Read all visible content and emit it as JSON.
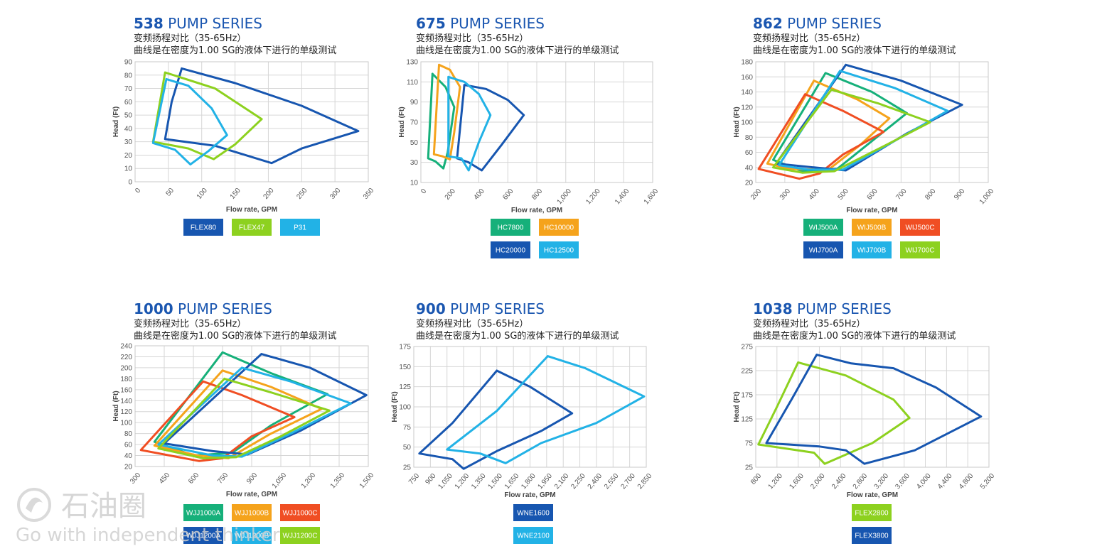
{
  "subtitle_line1": "变频扬程对比（35-65Hz）",
  "subtitle_line2": "曲线是在密度为1.00 SG的液体下进行的单级测试",
  "watermark": {
    "logo_text": "石油圈",
    "tagline": "Go with independent thinker"
  },
  "chart_data": [
    {
      "type": "line",
      "title_num": "538",
      "title_rest": " PUMP SERIES",
      "xlabel": "Flow rate, GPM",
      "ylabel": "Head (Ft)",
      "xlim": [
        0,
        350
      ],
      "ylim": [
        0,
        90
      ],
      "xticks": [
        0,
        50,
        100,
        150,
        200,
        250,
        300,
        350
      ],
      "yticks": [
        0,
        10,
        20,
        30,
        40,
        50,
        60,
        70,
        80,
        90
      ],
      "series": [
        {
          "name": "FLEX80",
          "color": "#1756b0",
          "points": [
            [
              70,
              85
            ],
            [
              150,
              74
            ],
            [
              250,
              57
            ],
            [
              335,
              38
            ],
            [
              250,
              25
            ],
            [
              205,
              14
            ],
            [
              120,
              27
            ],
            [
              45,
              32
            ],
            [
              55,
              60
            ],
            [
              70,
              85
            ]
          ]
        },
        {
          "name": "FLEX47",
          "color": "#8dd11f",
          "points": [
            [
              45,
              82
            ],
            [
              120,
              70
            ],
            [
              190,
              47
            ],
            [
              150,
              28
            ],
            [
              118,
              17
            ],
            [
              80,
              25
            ],
            [
              27,
              30
            ],
            [
              45,
              82
            ]
          ]
        },
        {
          "name": "P31",
          "color": "#22b2e6",
          "points": [
            [
              47,
              77
            ],
            [
              80,
              72
            ],
            [
              115,
              55
            ],
            [
              138,
              35
            ],
            [
              110,
              23
            ],
            [
              83,
              13
            ],
            [
              60,
              24
            ],
            [
              27,
              29
            ],
            [
              47,
              77
            ]
          ]
        }
      ]
    },
    {
      "type": "line",
      "title_num": "675",
      "title_rest": " PUMP SERIES",
      "xlabel": "Flow rate, GPM",
      "ylabel": "Head (Ft)",
      "xlim": [
        0,
        1600
      ],
      "ylim": [
        10,
        130
      ],
      "xticks": [
        0,
        200,
        400,
        600,
        800,
        1000,
        1200,
        1400,
        1600
      ],
      "yticks": [
        10,
        30,
        50,
        70,
        90,
        110,
        130
      ],
      "series": [
        {
          "name": "HC7800",
          "color": "#16b07a",
          "points": [
            [
              80,
              118
            ],
            [
              170,
              105
            ],
            [
              230,
              85
            ],
            [
              185,
              40
            ],
            [
              155,
              24
            ],
            [
              100,
              31
            ],
            [
              50,
              34
            ],
            [
              80,
              118
            ]
          ]
        },
        {
          "name": "HC10000",
          "color": "#f5a31c",
          "points": [
            [
              125,
              127
            ],
            [
              200,
              122
            ],
            [
              270,
              105
            ],
            [
              230,
              60
            ],
            [
              200,
              33
            ],
            [
              150,
              36
            ],
            [
              90,
              38
            ],
            [
              125,
              127
            ]
          ]
        },
        {
          "name": "HC20000",
          "color": "#1756b0",
          "points": [
            [
              300,
              107
            ],
            [
              450,
              103
            ],
            [
              600,
              92
            ],
            [
              710,
              77
            ],
            [
              560,
              48
            ],
            [
              420,
              22
            ],
            [
              330,
              30
            ],
            [
              250,
              34
            ],
            [
              300,
              107
            ]
          ]
        },
        {
          "name": "HC12500",
          "color": "#22b2e6",
          "points": [
            [
              190,
              115
            ],
            [
              300,
              110
            ],
            [
              400,
              98
            ],
            [
              480,
              77
            ],
            [
              400,
              50
            ],
            [
              330,
              22
            ],
            [
              280,
              34
            ],
            [
              190,
              36
            ],
            [
              190,
              115
            ]
          ]
        }
      ]
    },
    {
      "type": "line",
      "title_num": "862",
      "title_rest": " PUMP SERIES",
      "xlabel": "Flow rate, GPM",
      "ylabel": "Head (Ft)",
      "xlim": [
        200,
        1000
      ],
      "ylim": [
        20,
        180
      ],
      "xticks": [
        200,
        300,
        400,
        500,
        600,
        700,
        800,
        900,
        1000
      ],
      "yticks": [
        20,
        40,
        60,
        80,
        100,
        120,
        140,
        160,
        180
      ],
      "series": [
        {
          "name": "WIJ500A",
          "color": "#16b07a",
          "points": [
            [
              440,
              165
            ],
            [
              600,
              140
            ],
            [
              720,
              112
            ],
            [
              600,
              75
            ],
            [
              480,
              38
            ],
            [
              360,
              35
            ],
            [
              260,
              50
            ],
            [
              440,
              165
            ]
          ]
        },
        {
          "name": "WIJ500B",
          "color": "#f5a31c",
          "points": [
            [
              400,
              155
            ],
            [
              550,
              130
            ],
            [
              660,
              105
            ],
            [
              560,
              70
            ],
            [
              450,
              37
            ],
            [
              320,
              38
            ],
            [
              240,
              45
            ],
            [
              400,
              155
            ]
          ]
        },
        {
          "name": "WIJ500C",
          "color": "#f04e23",
          "points": [
            [
              370,
              137
            ],
            [
              500,
              115
            ],
            [
              640,
              87
            ],
            [
              500,
              57
            ],
            [
              420,
              32
            ],
            [
              350,
              25
            ],
            [
              210,
              38
            ],
            [
              370,
              137
            ]
          ]
        },
        {
          "name": "WIJ700A",
          "color": "#1756b0",
          "points": [
            [
              510,
              176
            ],
            [
              700,
              155
            ],
            [
              910,
              123
            ],
            [
              720,
              85
            ],
            [
              510,
              36
            ],
            [
              400,
              40
            ],
            [
              270,
              45
            ],
            [
              510,
              176
            ]
          ]
        },
        {
          "name": "WIJ700B",
          "color": "#22b2e6",
          "points": [
            [
              490,
              168
            ],
            [
              680,
              145
            ],
            [
              860,
              115
            ],
            [
              700,
              80
            ],
            [
              500,
              37
            ],
            [
              380,
              37
            ],
            [
              280,
              43
            ],
            [
              490,
              168
            ]
          ]
        },
        {
          "name": "WIJ700C",
          "color": "#8dd11f",
          "points": [
            [
              460,
              143
            ],
            [
              620,
              125
            ],
            [
              800,
              100
            ],
            [
              650,
              70
            ],
            [
              470,
              35
            ],
            [
              360,
              33
            ],
            [
              260,
              40
            ],
            [
              460,
              143
            ]
          ]
        }
      ]
    },
    {
      "type": "line",
      "title_num": "1000",
      "title_rest": " PUMP SERIES",
      "xlabel": "Flow rate, GPM",
      "ylabel": "Head (Ft)",
      "xlim": [
        300,
        1500
      ],
      "ylim": [
        20,
        240
      ],
      "xticks": [
        300,
        450,
        600,
        750,
        900,
        1050,
        1200,
        1350,
        1500
      ],
      "yticks": [
        20,
        40,
        60,
        80,
        100,
        120,
        140,
        160,
        180,
        200,
        220,
        240
      ],
      "series": [
        {
          "name": "WJJ1000A",
          "color": "#16b07a",
          "points": [
            [
              750,
              228
            ],
            [
              1000,
              190
            ],
            [
              1290,
              152
            ],
            [
              1000,
              95
            ],
            [
              800,
              45
            ],
            [
              600,
              40
            ],
            [
              400,
              65
            ],
            [
              750,
              228
            ]
          ]
        },
        {
          "name": "WJJ1000B",
          "color": "#f5a31c",
          "points": [
            [
              750,
              195
            ],
            [
              1000,
              165
            ],
            [
              1260,
              125
            ],
            [
              1000,
              80
            ],
            [
              780,
              35
            ],
            [
              620,
              40
            ],
            [
              400,
              58
            ],
            [
              750,
              195
            ]
          ]
        },
        {
          "name": "WJJ1000C",
          "color": "#f04e23",
          "points": [
            [
              650,
              175
            ],
            [
              850,
              150
            ],
            [
              1120,
              110
            ],
            [
              900,
              75
            ],
            [
              750,
              35
            ],
            [
              630,
              30
            ],
            [
              330,
              50
            ],
            [
              650,
              175
            ]
          ]
        },
        {
          "name": "WJJ1200A",
          "color": "#1756b0",
          "points": [
            [
              950,
              225
            ],
            [
              1200,
              200
            ],
            [
              1490,
              150
            ],
            [
              1150,
              85
            ],
            [
              880,
              42
            ],
            [
              700,
              48
            ],
            [
              450,
              62
            ],
            [
              950,
              225
            ]
          ]
        },
        {
          "name": "WJJ1200B",
          "color": "#22b2e6",
          "points": [
            [
              850,
              200
            ],
            [
              1100,
              175
            ],
            [
              1410,
              135
            ],
            [
              1100,
              80
            ],
            [
              850,
              38
            ],
            [
              700,
              40
            ],
            [
              420,
              60
            ],
            [
              850,
              200
            ]
          ]
        },
        {
          "name": "WJJ1200C",
          "color": "#8dd11f",
          "points": [
            [
              760,
              180
            ],
            [
              1000,
              155
            ],
            [
              1300,
              122
            ],
            [
              1050,
              75
            ],
            [
              820,
              37
            ],
            [
              650,
              35
            ],
            [
              420,
              53
            ],
            [
              760,
              180
            ]
          ]
        }
      ]
    },
    {
      "type": "line",
      "title_num": "900",
      "title_rest": " PUMP SERIES",
      "xlabel": "Flow rate, GPM",
      "ylabel": "Head (Ft)",
      "xlim": [
        750,
        2850
      ],
      "ylim": [
        25,
        175
      ],
      "xticks": [
        750,
        900,
        1050,
        1200,
        1350,
        1500,
        1650,
        1800,
        1950,
        2100,
        2250,
        2400,
        2550,
        2700,
        2850
      ],
      "yticks": [
        25,
        50,
        75,
        100,
        125,
        150,
        175
      ],
      "series": [
        {
          "name": "WNE1600",
          "color": "#1756b0",
          "points": [
            [
              1500,
              145
            ],
            [
              1800,
              125
            ],
            [
              2180,
              92
            ],
            [
              1900,
              70
            ],
            [
              1500,
              45
            ],
            [
              1200,
              23
            ],
            [
              1100,
              35
            ],
            [
              800,
              42
            ],
            [
              1100,
              80
            ],
            [
              1500,
              145
            ]
          ]
        },
        {
          "name": "WNE2100",
          "color": "#22b2e6",
          "points": [
            [
              1960,
              163
            ],
            [
              2300,
              148
            ],
            [
              2830,
              113
            ],
            [
              2400,
              80
            ],
            [
              1900,
              55
            ],
            [
              1580,
              30
            ],
            [
              1350,
              42
            ],
            [
              1050,
              47
            ],
            [
              1500,
              95
            ],
            [
              1960,
              163
            ]
          ]
        }
      ]
    },
    {
      "type": "line",
      "title_num": "1038",
      "title_rest": " PUMP SERIES",
      "xlabel": "Flow rate, GPM",
      "ylabel": "Head (Ft)",
      "xlim": [
        800,
        5200
      ],
      "ylim": [
        25,
        275
      ],
      "xticks": [
        800,
        1200,
        1600,
        2000,
        2400,
        2800,
        3200,
        3600,
        4000,
        4400,
        4800,
        5200
      ],
      "yticks": [
        25,
        75,
        125,
        175,
        225,
        275
      ],
      "series": [
        {
          "name": "FLEX2800",
          "color": "#8dd11f",
          "points": [
            [
              1600,
              242
            ],
            [
              2500,
              215
            ],
            [
              3400,
              165
            ],
            [
              3700,
              127
            ],
            [
              3000,
              75
            ],
            [
              2100,
              32
            ],
            [
              1900,
              55
            ],
            [
              850,
              72
            ],
            [
              1200,
              150
            ],
            [
              1600,
              242
            ]
          ]
        },
        {
          "name": "FLEX3800",
          "color": "#1756b0",
          "points": [
            [
              1950,
              258
            ],
            [
              2600,
              240
            ],
            [
              3400,
              230
            ],
            [
              4200,
              190
            ],
            [
              5050,
              130
            ],
            [
              3800,
              60
            ],
            [
              2850,
              32
            ],
            [
              2500,
              60
            ],
            [
              2000,
              68
            ],
            [
              1000,
              75
            ],
            [
              1500,
              170
            ],
            [
              1950,
              258
            ]
          ]
        }
      ]
    }
  ]
}
